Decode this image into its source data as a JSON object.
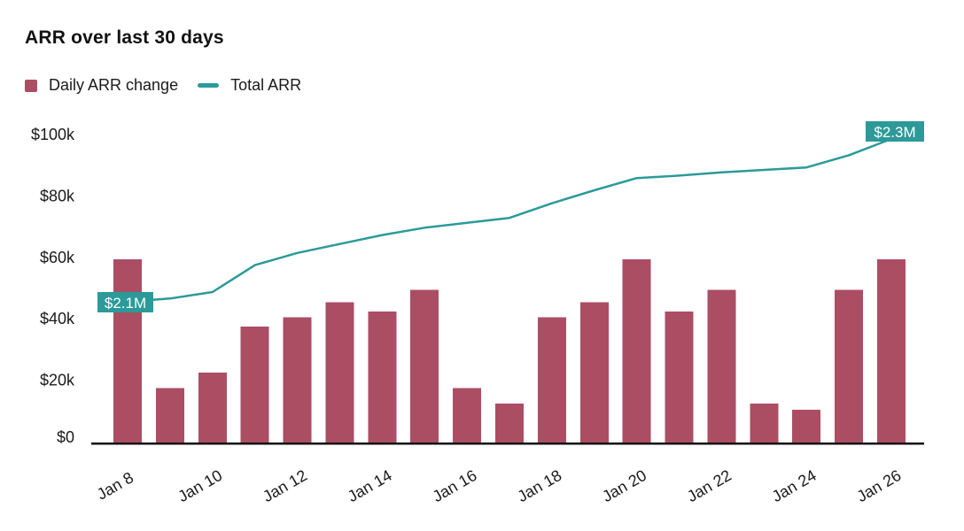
{
  "chart_data": {
    "type": "bar",
    "title": "ARR over last 30 days",
    "categories": [
      "Jan 8",
      "Jan 9",
      "Jan 10",
      "Jan 11",
      "Jan 12",
      "Jan 13",
      "Jan 14",
      "Jan 15",
      "Jan 16",
      "Jan 17",
      "Jan 18",
      "Jan 19",
      "Jan 20",
      "Jan 21",
      "Jan 22",
      "Jan 23",
      "Jan 24",
      "Jan 25",
      "Jan 26"
    ],
    "x_tick_labels": [
      "Jan 8",
      "Jan 10",
      "Jan 12",
      "Jan 14",
      "Jan 16",
      "Jan 18",
      "Jan 20",
      "Jan 22",
      "Jan 24",
      "Jan 26"
    ],
    "series": [
      {
        "name": "Daily ARR change",
        "type": "bar",
        "unit": "USD thousands",
        "color": "#ab4e64",
        "values": [
          60,
          18,
          23,
          38,
          41,
          46,
          43,
          50,
          18,
          13,
          41,
          46,
          60,
          43,
          50,
          13,
          11,
          50,
          60
        ]
      },
      {
        "name": "Total ARR",
        "type": "line",
        "unit": "USD millions",
        "color": "#2b9a99",
        "values": [
          2.1,
          2.104,
          2.112,
          2.145,
          2.16,
          2.171,
          2.182,
          2.191,
          2.197,
          2.203,
          2.221,
          2.237,
          2.252,
          2.255,
          2.259,
          2.262,
          2.265,
          2.28,
          2.3
        ],
        "value_range": [
          2.1,
          2.3
        ]
      }
    ],
    "y_axis": {
      "ticks": [
        "$0",
        "$20k",
        "$40k",
        "$60k",
        "$80k",
        "$100k"
      ],
      "tick_values": [
        0,
        20,
        40,
        60,
        80,
        100
      ],
      "range": [
        0,
        100
      ]
    },
    "annotations": [
      {
        "text": "$2.1M",
        "at": "Jan 8",
        "position": "start"
      },
      {
        "text": "$2.3M",
        "at": "Jan 26",
        "position": "end"
      }
    ],
    "grid": false,
    "legend_position": "top-left",
    "colors": {
      "bar": "#ab4e64",
      "line": "#2b9a99",
      "badge_bg": "#2b9a99",
      "badge_text": "#ffffff",
      "text": "#1a1a1a",
      "axis": "#111111"
    }
  }
}
